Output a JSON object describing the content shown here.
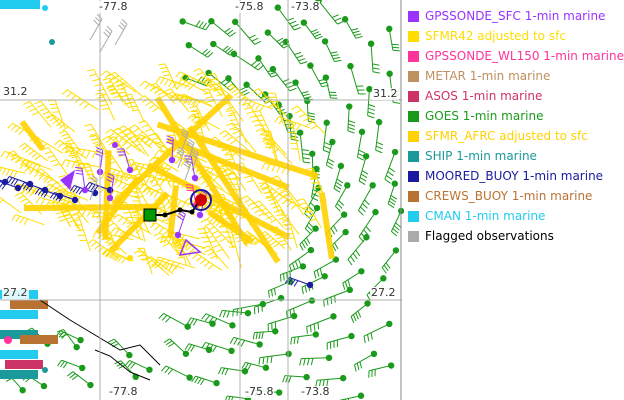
{
  "map": {
    "longitude_labels": [
      "-77.8",
      "-75.8",
      "-73.8",
      "-77.8",
      "-75.8",
      "-73.8"
    ],
    "latitude_labels": [
      "31.2",
      "31.2",
      "27.2",
      "27.2"
    ],
    "colors": {
      "gridline": "#b0b0b0",
      "flight_track": "#000000",
      "storm_center": "#cc0000",
      "storm_ring": "#1a1aa0",
      "start_marker": "#009900"
    }
  },
  "legend": {
    "items": [
      {
        "label": "GPSSONDE_SFC 1-min marine",
        "color": "#9933ff"
      },
      {
        "label": "SFMR42 adjusted to sfc",
        "color": "#ffdd00"
      },
      {
        "label": "GPSSONDE_WL150 1-min marine",
        "color": "#ff3399"
      },
      {
        "label": "METAR 1-min marine",
        "color": "#c09060"
      },
      {
        "label": "ASOS 1-min marine",
        "color": "#cc3366"
      },
      {
        "label": "GOES 1-min marine",
        "color": "#1a9a1a"
      },
      {
        "label": "SFMR_AFRC adjusted to sfc",
        "color": "#ffd200"
      },
      {
        "label": "SHIP 1-min marine",
        "color": "#1a9a9a"
      },
      {
        "label": "MOORED_BUOY 1-min marine",
        "color": "#1a1aa0"
      },
      {
        "label": "CREWS_BUOY 1-min marine",
        "color": "#b87333"
      },
      {
        "label": "CMAN 1-min marine",
        "color": "#22ccee"
      },
      {
        "label": "Flagged observations",
        "color": "#aaaaaa"
      }
    ]
  }
}
